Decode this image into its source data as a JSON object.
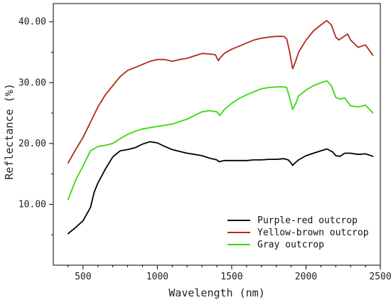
{
  "chart_data": {
    "type": "line",
    "title": "",
    "xlabel": "Wavelength (nm)",
    "ylabel": "Reflectance (%)",
    "xlim": [
      300,
      2500
    ],
    "ylim": [
      0,
      43
    ],
    "x_ticks": [
      500,
      1000,
      1500,
      2000,
      2500
    ],
    "x_tick_labels": [
      "500",
      "1000",
      "1500",
      "2000",
      "2500"
    ],
    "y_ticks": [
      10,
      20,
      30,
      40
    ],
    "y_tick_labels": [
      "10.00",
      "20.00",
      "30.00",
      "40.00"
    ],
    "legend_position": "bottom-right",
    "grid": false,
    "series": [
      {
        "name": "Purple-red outcrop",
        "color": "#000000",
        "x": [
          400,
          450,
          500,
          550,
          575,
          600,
          650,
          700,
          750,
          800,
          850,
          900,
          950,
          1000,
          1050,
          1100,
          1150,
          1200,
          1250,
          1300,
          1350,
          1400,
          1415,
          1430,
          1450,
          1500,
          1550,
          1600,
          1650,
          1700,
          1750,
          1800,
          1850,
          1880,
          1900,
          1910,
          1930,
          1950,
          2000,
          2050,
          2100,
          2140,
          2180,
          2200,
          2230,
          2260,
          2300,
          2350,
          2400,
          2450
        ],
        "y": [
          5.2,
          6.2,
          7.3,
          9.5,
          12.0,
          13.5,
          15.8,
          17.8,
          18.8,
          19.0,
          19.3,
          19.9,
          20.3,
          20.1,
          19.5,
          19.0,
          18.7,
          18.4,
          18.2,
          18.0,
          17.6,
          17.3,
          17.0,
          17.1,
          17.2,
          17.2,
          17.2,
          17.2,
          17.3,
          17.3,
          17.4,
          17.4,
          17.5,
          17.3,
          16.8,
          16.4,
          16.9,
          17.3,
          18.0,
          18.4,
          18.8,
          19.1,
          18.6,
          18.0,
          17.9,
          18.4,
          18.4,
          18.2,
          18.3,
          17.9
        ]
      },
      {
        "name": "Yellow-brown outcrop",
        "color": "#b5291a",
        "x": [
          400,
          450,
          500,
          550,
          600,
          650,
          700,
          750,
          800,
          850,
          900,
          950,
          1000,
          1050,
          1100,
          1150,
          1200,
          1250,
          1300,
          1350,
          1390,
          1410,
          1420,
          1450,
          1500,
          1550,
          1600,
          1650,
          1700,
          1750,
          1800,
          1850,
          1870,
          1890,
          1910,
          1930,
          1950,
          2000,
          2050,
          2100,
          2140,
          2170,
          2200,
          2220,
          2250,
          2280,
          2300,
          2350,
          2400,
          2450
        ],
        "y": [
          16.8,
          19.0,
          21.0,
          23.5,
          26.0,
          28.0,
          29.5,
          31.0,
          32.0,
          32.5,
          33.0,
          33.5,
          33.8,
          33.8,
          33.5,
          33.8,
          34.0,
          34.4,
          34.8,
          34.7,
          34.6,
          33.6,
          34.0,
          34.8,
          35.5,
          36.0,
          36.5,
          37.0,
          37.3,
          37.5,
          37.6,
          37.6,
          37.2,
          35.0,
          32.3,
          33.5,
          35.0,
          37.0,
          38.5,
          39.5,
          40.2,
          39.5,
          37.5,
          37.0,
          37.5,
          38.0,
          37.0,
          35.8,
          36.2,
          34.5
        ]
      },
      {
        "name": "Gray outcrop",
        "color": "#38d80f",
        "x": [
          400,
          450,
          500,
          550,
          600,
          650,
          700,
          750,
          800,
          850,
          900,
          950,
          1000,
          1050,
          1100,
          1150,
          1200,
          1250,
          1300,
          1350,
          1400,
          1420,
          1450,
          1500,
          1550,
          1600,
          1650,
          1700,
          1750,
          1800,
          1850,
          1870,
          1890,
          1910,
          1930,
          1950,
          2000,
          2050,
          2100,
          2140,
          2170,
          2200,
          2230,
          2260,
          2300,
          2350,
          2400,
          2450
        ],
        "y": [
          10.8,
          14.0,
          16.3,
          18.8,
          19.5,
          19.7,
          20.0,
          20.8,
          21.5,
          22.0,
          22.4,
          22.6,
          22.8,
          23.0,
          23.2,
          23.6,
          24.0,
          24.6,
          25.2,
          25.4,
          25.2,
          24.6,
          25.6,
          26.6,
          27.4,
          28.0,
          28.5,
          29.0,
          29.2,
          29.3,
          29.3,
          29.2,
          27.5,
          25.6,
          26.5,
          27.8,
          28.8,
          29.5,
          30.0,
          30.3,
          29.5,
          27.6,
          27.3,
          27.5,
          26.2,
          26.0,
          26.3,
          25.0
        ]
      }
    ]
  }
}
